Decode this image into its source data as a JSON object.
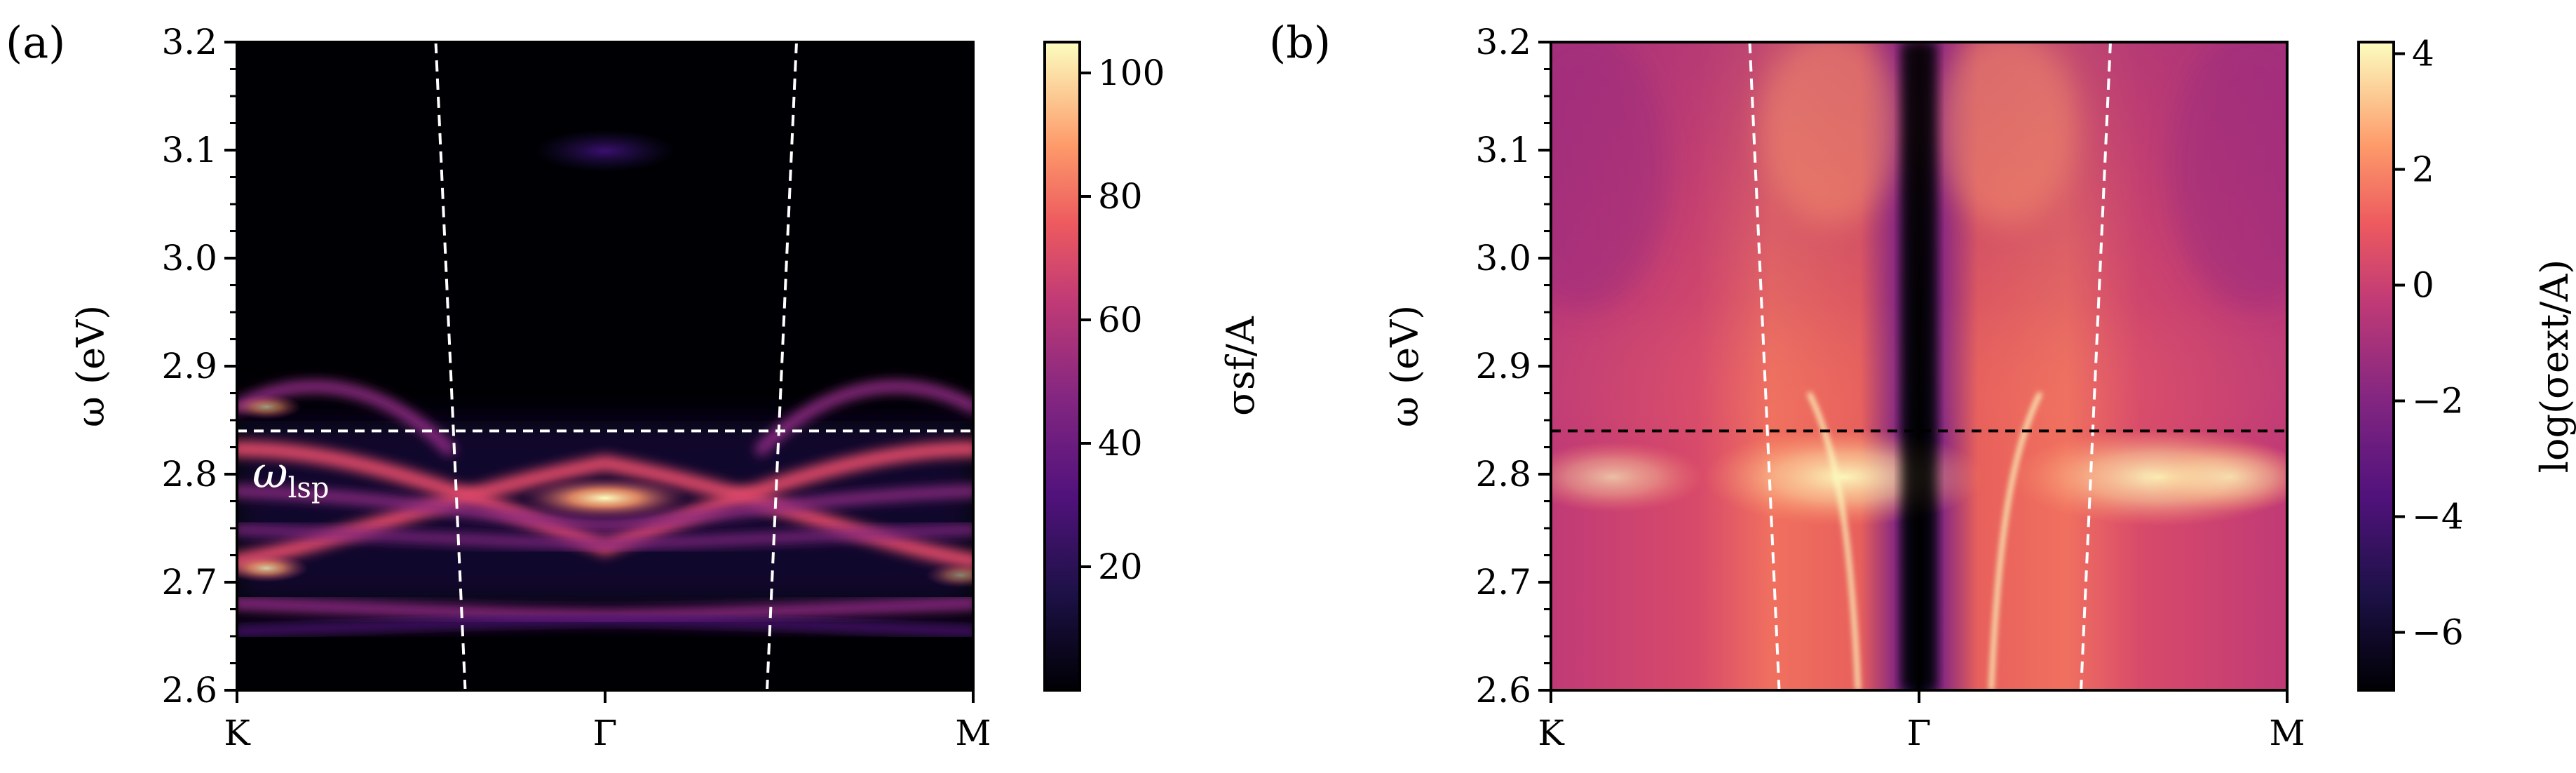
{
  "chart_data": [
    {
      "type": "heatmap",
      "panel_label": "(a)",
      "ylabel": "ω (eV)",
      "ylim": [
        2.6,
        3.2
      ],
      "yticks": [
        "2.6",
        "2.7",
        "2.8",
        "2.9",
        "3.0",
        "3.1",
        "3.2"
      ],
      "yticks_values": [
        2.6,
        2.7,
        2.8,
        2.9,
        3.0,
        3.1,
        3.2
      ],
      "x_categories": [
        "K",
        "Γ",
        "M"
      ],
      "colorbar_label": "σsf/A",
      "colorbar_range": [
        0,
        105
      ],
      "colorbar_ticks": [
        "20",
        "40",
        "60",
        "80",
        "100"
      ],
      "colorbar_tick_values": [
        20,
        40,
        60,
        80,
        100
      ],
      "colormap": [
        "#000004",
        "#3b0f70",
        "#8c2981",
        "#de4968",
        "#fe9f6d",
        "#fcfdbf"
      ],
      "hline": {
        "y": 2.84,
        "color": "#ffffff"
      },
      "annotation": {
        "main": "ω",
        "sub": "lsp",
        "y": 2.8
      },
      "light_lines": [
        {
          "x0": 0.27,
          "y0": 3.2,
          "x1": 0.31,
          "y1": 2.6
        },
        {
          "x0": 0.76,
          "y0": 3.2,
          "x1": 0.72,
          "y1": 2.6
        }
      ]
    },
    {
      "type": "heatmap",
      "panel_label": "(b)",
      "ylabel": "ω (eV)",
      "ylim": [
        2.6,
        3.2
      ],
      "yticks": [
        "2.6",
        "2.7",
        "2.8",
        "2.9",
        "3.0",
        "3.1",
        "3.2"
      ],
      "yticks_values": [
        2.6,
        2.7,
        2.8,
        2.9,
        3.0,
        3.1,
        3.2
      ],
      "x_categories": [
        "K",
        "Γ",
        "M"
      ],
      "colorbar_label": "log(σext/A)",
      "colorbar_range": [
        -7,
        4.2
      ],
      "colorbar_ticks": [
        "−6",
        "−4",
        "−2",
        "0",
        "2",
        "4"
      ],
      "colorbar_tick_values": [
        -6,
        -4,
        -2,
        0,
        2,
        4
      ],
      "colormap": [
        "#000004",
        "#3b0f70",
        "#8c2981",
        "#de4968",
        "#fe9f6d",
        "#fcfdbf"
      ],
      "hline": {
        "y": 2.84,
        "color": "#000000"
      },
      "light_lines": [
        {
          "x0": 0.27,
          "y0": 3.2,
          "x1": 0.31,
          "y1": 2.6
        },
        {
          "x0": 0.76,
          "y0": 3.2,
          "x1": 0.72,
          "y1": 2.6
        }
      ]
    }
  ]
}
